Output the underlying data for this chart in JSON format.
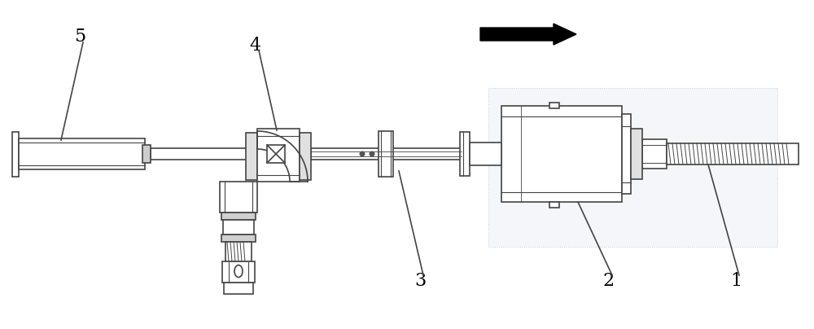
{
  "bg_color": "#ffffff",
  "line_color": "#444444",
  "lw": 1.2,
  "fig_width": 10.0,
  "fig_height": 4.04,
  "dpi": 100
}
